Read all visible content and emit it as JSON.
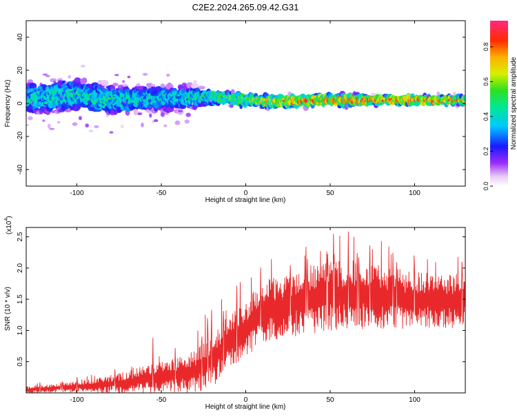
{
  "title": "C2E2.2024.265.09.42.G31",
  "chart_data": [
    {
      "type": "heatmap",
      "xlabel": "Height of straight line (km)",
      "ylabel": "Frequency (Hz)",
      "xlim": [
        -130,
        130
      ],
      "ylim": [
        -50,
        50
      ],
      "xticks": [
        -100,
        -50,
        0,
        50,
        100
      ],
      "yticks": [
        -40,
        -20,
        0,
        20,
        40
      ],
      "colorbar": {
        "label": "Normalized spectral amplitude",
        "range": [
          0,
          0.95
        ],
        "ticks": [
          "0.0",
          "0.2",
          "0.4",
          "0.6",
          "0.8"
        ]
      },
      "ridge": {
        "description": "frequency band centered near 0-3 Hz",
        "x": [
          -130,
          -100,
          -80,
          -60,
          -40,
          -20,
          0,
          20,
          40,
          60,
          80,
          100,
          130
        ],
        "center_hz": [
          3,
          5,
          2,
          3,
          3,
          4,
          2,
          1,
          2,
          2,
          2,
          2,
          2
        ],
        "halfwidth_hz": [
          10,
          10,
          9,
          8,
          8,
          5,
          4,
          4,
          4,
          4,
          3,
          3,
          3
        ],
        "peak_amplitude": [
          0.45,
          0.5,
          0.5,
          0.45,
          0.45,
          0.55,
          0.7,
          0.85,
          0.9,
          0.9,
          0.9,
          0.9,
          0.85
        ]
      }
    },
    {
      "type": "line",
      "xlabel": "Height of straight line (km)",
      "ylabel": "SNR (10 * v/v)",
      "yscale_label": "(x10",
      "yscale_exp": "4",
      "xlim": [
        -130,
        130
      ],
      "ylim": [
        0,
        2.65
      ],
      "xticks": [
        -100,
        -50,
        0,
        50,
        100
      ],
      "yticks": [
        0.5,
        1.0,
        1.5,
        2.0,
        2.5
      ],
      "ytick_labels": [
        "0.5",
        "1.0",
        "1.5",
        "2.0",
        "2.5"
      ],
      "series": [
        {
          "color": "#e8282a",
          "trend_x": [
            -130,
            -110,
            -90,
            -70,
            -55,
            -40,
            -30,
            -20,
            -10,
            0,
            10,
            20,
            40,
            60,
            80,
            100,
            130
          ],
          "trend_y": [
            0.05,
            0.08,
            0.12,
            0.18,
            0.25,
            0.3,
            0.35,
            0.55,
            0.85,
            1.05,
            1.3,
            1.4,
            1.55,
            1.6,
            1.55,
            1.5,
            1.5
          ],
          "noise_amplitude": [
            0.05,
            0.06,
            0.1,
            0.15,
            0.22,
            0.25,
            0.3,
            0.4,
            0.4,
            0.4,
            0.45,
            0.45,
            0.5,
            0.5,
            0.45,
            0.4,
            0.4
          ],
          "peaks": [
            {
              "x": -55,
              "y": 0.88
            },
            {
              "x": -24,
              "y": 1.25
            },
            {
              "x": 35,
              "y": 2.2
            },
            {
              "x": 52,
              "y": 2.55
            },
            {
              "x": 64,
              "y": 2.5
            },
            {
              "x": 75,
              "y": 2.3
            },
            {
              "x": 128,
              "y": 2.1
            }
          ]
        }
      ]
    }
  ]
}
